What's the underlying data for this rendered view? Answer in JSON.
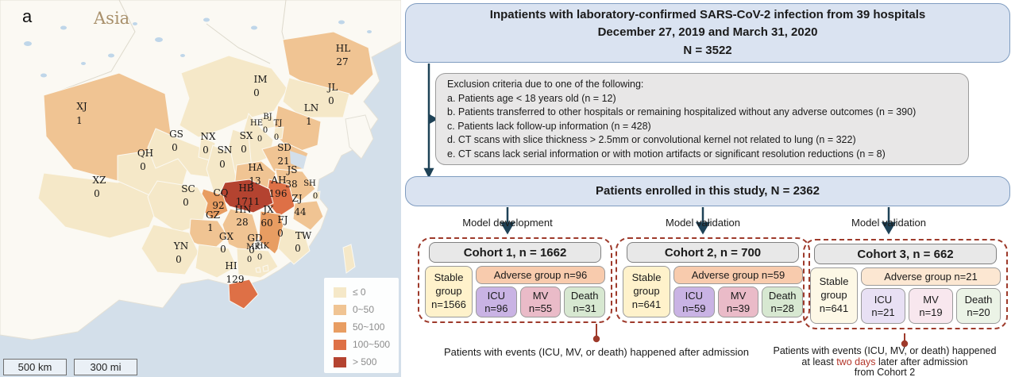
{
  "panel_label": "a",
  "map": {
    "region_label": "Asia",
    "scale_km": "500 km",
    "scale_mi": "300 mi",
    "legend": [
      {
        "label": "≤ 0",
        "color": "#f5e8c8"
      },
      {
        "label": "0~50",
        "color": "#f0c493"
      },
      {
        "label": "50~100",
        "color": "#e89d62"
      },
      {
        "label": "100~500",
        "color": "#de7046"
      },
      {
        "label": "> 500",
        "color": "#b44330"
      }
    ],
    "provinces": [
      {
        "code": "XJ",
        "value": "1",
        "cat": "B"
      },
      {
        "code": "XZ",
        "value": "0",
        "cat": "A"
      },
      {
        "code": "QH",
        "value": "0",
        "cat": "A"
      },
      {
        "code": "GS",
        "value": "0",
        "cat": "A"
      },
      {
        "code": "NX",
        "value": "0",
        "cat": "A"
      },
      {
        "code": "IM",
        "value": "0",
        "cat": "A"
      },
      {
        "code": "HL",
        "value": "27",
        "cat": "B"
      },
      {
        "code": "JL",
        "value": "0",
        "cat": "A"
      },
      {
        "code": "LN",
        "value": "1",
        "cat": "B"
      },
      {
        "code": "BJ",
        "value": "0",
        "cat": "A"
      },
      {
        "code": "TJ",
        "value": "0",
        "cat": "A"
      },
      {
        "code": "HE",
        "value": "0",
        "cat": "A"
      },
      {
        "code": "SX",
        "value": "0",
        "cat": "A"
      },
      {
        "code": "SN",
        "value": "0",
        "cat": "A"
      },
      {
        "code": "SD",
        "value": "21",
        "cat": "B"
      },
      {
        "code": "HA",
        "value": "13",
        "cat": "B"
      },
      {
        "code": "JS",
        "value": "38",
        "cat": "B"
      },
      {
        "code": "SH",
        "value": "0",
        "cat": "A"
      },
      {
        "code": "AH",
        "value": "196",
        "cat": "D"
      },
      {
        "code": "ZJ",
        "value": "44",
        "cat": "B"
      },
      {
        "code": "HB",
        "value": "1711",
        "cat": "E"
      },
      {
        "code": "CQ",
        "value": "92",
        "cat": "C"
      },
      {
        "code": "SC",
        "value": "0",
        "cat": "A"
      },
      {
        "code": "GZ",
        "value": "1",
        "cat": "B"
      },
      {
        "code": "HN",
        "value": "28",
        "cat": "B"
      },
      {
        "code": "JX",
        "value": "60",
        "cat": "C"
      },
      {
        "code": "FJ",
        "value": "0",
        "cat": "A"
      },
      {
        "code": "YN",
        "value": "0",
        "cat": "A"
      },
      {
        "code": "GX",
        "value": "0",
        "cat": "A"
      },
      {
        "code": "GD",
        "value": "0",
        "cat": "A"
      },
      {
        "code": "MK",
        "value": "0",
        "cat": "A"
      },
      {
        "code": "HK",
        "value": "0",
        "cat": "A"
      },
      {
        "code": "TW",
        "value": "0",
        "cat": "A"
      },
      {
        "code": "HI",
        "value": "129",
        "cat": "D"
      }
    ]
  },
  "flowchart": {
    "top_box": {
      "line1": "Inpatients with laboratory-confirmed SARS-CoV-2 infection from 39 hospitals",
      "line2": "December 27, 2019 and March 31, 2020",
      "line3": "N = 3522"
    },
    "exclusion": {
      "title": "Exclusion criteria due to one of the following:",
      "items": [
        "a. Patients age < 18 years old (n = 12)",
        "b. Patients transferred to other hospitals or remaining hospitalized without any adverse outcomes (n = 390)",
        "c. Patients lack follow-up information (n = 428)",
        "d. CT scans with slice thickness > 2.5mm or convolutional kernel not related to lung (n = 322)",
        "e. CT scans lack serial information or with motion artifacts or significant resolution reductions (n = 8)"
      ]
    },
    "enrolled_box": "Patients enrolled in this study, N = 2362",
    "branches": [
      {
        "label": "Model development",
        "cohort_title": "Cohort 1, n = 1662",
        "stable": "Stable\ngroup\nn=1566",
        "adverse": "Adverse group n=96",
        "icu": "ICU\nn=96",
        "mv": "MV\nn=55",
        "death": "Death\nn=31"
      },
      {
        "label": "Model validation",
        "cohort_title": "Cohort 2, n = 700",
        "stable": "Stable\ngroup\nn=641",
        "adverse": "Adverse group n=59",
        "icu": "ICU\nn=59",
        "mv": "MV\nn=39",
        "death": "Death\nn=28"
      },
      {
        "label": "Model validation",
        "cohort_title": "Cohort 3, n = 662",
        "stable": "Stable\ngroup\nn=641",
        "adverse": "Adverse group n=21",
        "icu": "ICU\nn=21",
        "mv": "MV\nn=19",
        "death": "Death\nn=20"
      }
    ],
    "annotation1": "Patients with events (ICU, MV, or death) happened after admission",
    "annotation2": {
      "line1": "Patients with events (ICU, MV, or death) happened",
      "line2_pre": "at least ",
      "line2_red": "two days",
      "line2_post": " later after admission",
      "line3": "from Cohort 2"
    }
  },
  "colors": {
    "accent_red": "#b3362a",
    "arrow": "#1e4257",
    "dashed_border": "#9e3a2b"
  }
}
